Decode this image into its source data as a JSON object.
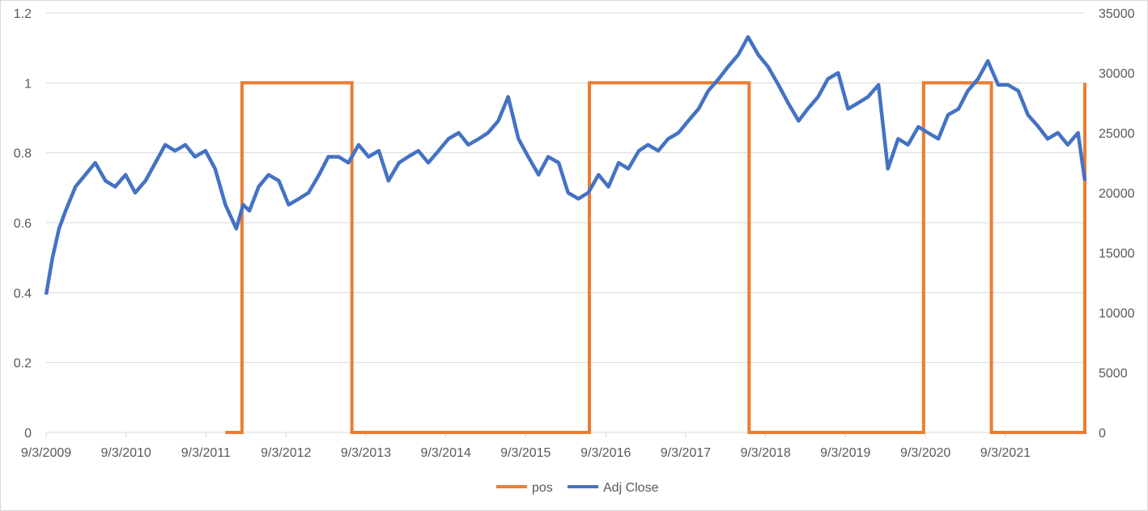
{
  "chart_data": {
    "type": "line",
    "title": "",
    "xlabel": "",
    "ylabel": "",
    "x_tick_labels": [
      "9/3/2009",
      "9/3/2010",
      "9/3/2011",
      "9/3/2012",
      "9/3/2013",
      "9/3/2014",
      "9/3/2015",
      "9/3/2016",
      "9/3/2017",
      "9/3/2018",
      "9/3/2019",
      "9/3/2020",
      "9/3/2021"
    ],
    "x_range": [
      "9/3/2009",
      "9/1/2022"
    ],
    "y_left": {
      "ticks": [
        "0",
        "0.2",
        "0.4",
        "0.6",
        "0.8",
        "1",
        "1.2"
      ],
      "ylim": [
        0,
        1.2
      ]
    },
    "y_right": {
      "ticks": [
        "0",
        "5000",
        "10000",
        "15000",
        "20000",
        "25000",
        "30000",
        "35000"
      ],
      "ylim": [
        0,
        35000
      ]
    },
    "grid": true,
    "legend_position": "bottom",
    "series": [
      {
        "name": "pos",
        "axis": "left",
        "color": "#ED7D31",
        "shape": "step",
        "x": [
          "2011-12-01",
          "2012-02-15",
          "2012-02-15",
          "2013-07-01",
          "2013-07-01",
          "2016-06-20",
          "2016-06-20",
          "2018-06-20",
          "2018-06-20",
          "2020-08-25",
          "2020-08-25",
          "2021-07-01",
          "2021-07-01",
          "2022-09-01",
          "2022-09-01"
        ],
        "values": [
          0,
          0,
          1,
          1,
          0,
          0,
          1,
          1,
          0,
          0,
          1,
          1,
          0,
          0,
          1
        ]
      },
      {
        "name": "Adj Close",
        "axis": "right",
        "color": "#4472C4",
        "x": [
          "2009-09-03",
          "2009-10-01",
          "2009-11-01",
          "2009-12-01",
          "2010-01-15",
          "2010-03-01",
          "2010-04-15",
          "2010-06-01",
          "2010-07-15",
          "2010-09-01",
          "2010-10-15",
          "2010-12-01",
          "2011-01-15",
          "2011-03-01",
          "2011-04-15",
          "2011-06-01",
          "2011-07-15",
          "2011-09-01",
          "2011-10-15",
          "2011-12-01",
          "2012-01-20",
          "2012-02-20",
          "2012-03-20",
          "2012-05-01",
          "2012-06-15",
          "2012-08-01",
          "2012-09-15",
          "2012-11-01",
          "2012-12-15",
          "2013-02-01",
          "2013-03-15",
          "2013-05-01",
          "2013-06-15",
          "2013-08-01",
          "2013-09-15",
          "2013-11-01",
          "2013-12-15",
          "2014-02-01",
          "2014-03-15",
          "2014-05-01",
          "2014-06-15",
          "2014-08-01",
          "2014-09-15",
          "2014-11-01",
          "2014-12-15",
          "2015-02-01",
          "2015-03-15",
          "2015-05-01",
          "2015-06-15",
          "2015-08-01",
          "2015-09-15",
          "2015-11-01",
          "2015-12-15",
          "2016-02-01",
          "2016-03-15",
          "2016-05-01",
          "2016-06-15",
          "2016-08-01",
          "2016-09-15",
          "2016-11-01",
          "2016-12-15",
          "2017-02-01",
          "2017-03-15",
          "2017-05-01",
          "2017-06-15",
          "2017-08-01",
          "2017-09-15",
          "2017-11-01",
          "2017-12-15",
          "2018-02-01",
          "2018-03-15",
          "2018-05-01",
          "2018-06-15",
          "2018-08-01",
          "2018-09-15",
          "2018-11-01",
          "2018-12-15",
          "2019-02-01",
          "2019-03-15",
          "2019-05-01",
          "2019-06-15",
          "2019-08-01",
          "2019-09-15",
          "2019-11-01",
          "2019-12-15",
          "2020-02-01",
          "2020-03-15",
          "2020-05-01",
          "2020-06-15",
          "2020-08-01",
          "2020-09-15",
          "2020-11-01",
          "2020-12-15",
          "2021-02-01",
          "2021-03-15",
          "2021-05-01",
          "2021-06-15",
          "2021-08-01",
          "2021-09-15",
          "2021-11-01",
          "2021-12-15",
          "2022-02-01",
          "2022-03-15",
          "2022-05-01",
          "2022-06-15",
          "2022-08-01",
          "2022-09-01"
        ],
        "values": [
          11500,
          14500,
          17000,
          18500,
          20500,
          21500,
          22500,
          21000,
          20500,
          21500,
          20000,
          21000,
          22500,
          24000,
          23500,
          24000,
          23000,
          23500,
          22000,
          19000,
          17000,
          19000,
          18500,
          20500,
          21500,
          21000,
          19000,
          19500,
          20000,
          21500,
          23000,
          23000,
          22500,
          24000,
          23000,
          23500,
          21000,
          22500,
          23000,
          23500,
          22500,
          23500,
          24500,
          25000,
          24000,
          24500,
          25000,
          26000,
          28000,
          24500,
          23000,
          21500,
          23000,
          22500,
          20000,
          19500,
          20000,
          21500,
          20500,
          22500,
          22000,
          23500,
          24000,
          23500,
          24500,
          25000,
          26000,
          27000,
          28500,
          29500,
          30500,
          31500,
          33000,
          31500,
          30500,
          29000,
          27500,
          26000,
          27000,
          28000,
          29500,
          30000,
          27000,
          27500,
          28000,
          29000,
          22000,
          24500,
          24000,
          25500,
          25000,
          24500,
          26500,
          27000,
          28500,
          29500,
          31000,
          29000,
          29000,
          28500,
          26500,
          25500,
          24500,
          25000,
          24000,
          25000,
          21000
        ]
      }
    ]
  }
}
